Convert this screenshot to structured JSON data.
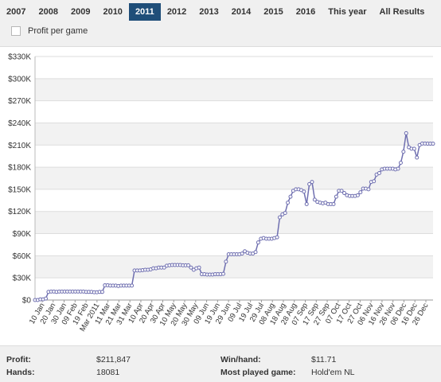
{
  "tabs": [
    {
      "label": "2007",
      "active": false
    },
    {
      "label": "2008",
      "active": false
    },
    {
      "label": "2009",
      "active": false
    },
    {
      "label": "2010",
      "active": false
    },
    {
      "label": "2011",
      "active": true
    },
    {
      "label": "2012",
      "active": false
    },
    {
      "label": "2013",
      "active": false
    },
    {
      "label": "2014",
      "active": false
    },
    {
      "label": "2015",
      "active": false
    },
    {
      "label": "2016",
      "active": false
    },
    {
      "label": "This year",
      "active": false
    },
    {
      "label": "All Results",
      "active": false
    }
  ],
  "profit_per_game": {
    "label": "Profit per game",
    "checked": false
  },
  "chart_data": {
    "type": "line",
    "title": "",
    "xlabel": "",
    "ylabel": "",
    "ylim": [
      0,
      330000
    ],
    "y_ticks": [
      "$0",
      "$30K",
      "$60K",
      "$90K",
      "$120K",
      "$150K",
      "$180K",
      "$210K",
      "$240K",
      "$270K",
      "$300K",
      "$330K"
    ],
    "x_ticks": [
      "10 Jan",
      "20 Jan",
      "30 Jan",
      "09 Feb",
      "19 Feb",
      "Mar 2011",
      "11 Mar",
      "21 Mar",
      "31 Mar",
      "10 Apr",
      "20 Apr",
      "30 Apr",
      "10 May",
      "20 May",
      "30 May",
      "09 Jun",
      "19 Jun",
      "29 Jun",
      "09 Jul",
      "19 Jul",
      "29 Jul",
      "08 Aug",
      "18 Aug",
      "28 Aug",
      "07 Sep",
      "17 Sep",
      "27 Sep",
      "07 Oct",
      "17 Oct",
      "27 Oct",
      "06 Nov",
      "16 Nov",
      "26 Nov",
      "06 Dec",
      "16 Dec",
      "26 Dec"
    ],
    "grid": true,
    "line_color": "#6f6fb0",
    "series": [
      {
        "x": [
          0,
          1,
          2,
          3,
          4,
          5,
          6,
          7,
          8,
          9,
          10,
          11,
          12,
          13,
          14,
          15,
          16,
          17,
          18,
          19,
          20,
          21,
          22,
          23,
          24,
          25,
          26,
          27,
          28,
          29,
          30,
          31,
          32,
          33,
          34,
          35,
          36,
          37,
          38,
          39,
          40,
          41,
          42,
          43,
          44,
          45,
          46,
          47,
          48,
          49,
          50,
          51,
          52,
          53,
          54,
          55,
          56,
          57,
          58,
          59,
          60,
          61,
          62,
          63,
          64,
          65,
          66,
          67,
          68,
          69,
          70,
          71,
          72,
          73,
          74,
          75,
          76,
          77,
          78,
          79,
          80,
          81,
          82,
          83,
          84,
          85,
          86,
          87,
          88,
          89,
          90,
          91,
          92,
          93,
          94,
          95,
          96,
          97,
          98,
          99,
          100,
          101,
          102,
          103,
          104,
          105,
          106,
          107,
          108,
          109,
          110,
          111,
          112,
          113,
          114,
          115,
          116,
          117,
          118,
          119,
          120,
          121,
          122,
          123,
          124,
          125,
          126,
          127,
          128,
          129,
          130,
          131,
          132,
          133,
          134,
          135,
          136,
          137,
          138,
          139,
          140,
          141,
          142,
          143,
          144,
          145,
          146,
          147,
          148
        ],
        "values": [
          0,
          0,
          1000,
          1000,
          2000,
          11000,
          11500,
          11500,
          11000,
          11500,
          11500,
          11500,
          11500,
          11500,
          11500,
          11500,
          11500,
          11500,
          11500,
          11000,
          11000,
          11000,
          10500,
          10500,
          11000,
          11000,
          20000,
          20000,
          19500,
          19500,
          19500,
          19000,
          19500,
          19500,
          19500,
          19500,
          19500,
          40000,
          40000,
          40000,
          40500,
          41000,
          41000,
          41500,
          43000,
          43000,
          44000,
          44000,
          44000,
          46500,
          47000,
          47500,
          47500,
          47500,
          47500,
          47000,
          47000,
          47000,
          44000,
          41000,
          43000,
          44000,
          35000,
          35000,
          34500,
          34500,
          34500,
          35000,
          35000,
          35000,
          35500,
          52000,
          62000,
          62000,
          62000,
          62000,
          62000,
          63000,
          66000,
          64000,
          63000,
          63000,
          65000,
          78000,
          83000,
          84000,
          83000,
          83000,
          83000,
          84000,
          85000,
          112000,
          116000,
          118000,
          132000,
          140000,
          148000,
          150000,
          150000,
          149000,
          147000,
          130000,
          157000,
          160000,
          136000,
          133000,
          132000,
          131000,
          132000,
          130000,
          130000,
          130000,
          140000,
          148000,
          148000,
          145000,
          142000,
          141000,
          141000,
          141000,
          142000,
          146000,
          151000,
          151000,
          150000,
          160000,
          161000,
          170000,
          172000,
          177000,
          178000,
          178000,
          178000,
          178000,
          177000,
          178000,
          186000,
          201000,
          226000,
          207000,
          205000,
          205000,
          193000,
          210000,
          212000,
          212000,
          211847,
          211847,
          211847
        ]
      }
    ]
  },
  "footer": {
    "profit_label": "Profit:",
    "profit_value": "$211,847",
    "hands_label": "Hands:",
    "hands_value": "18081",
    "winhand_label": "Win/hand:",
    "winhand_value": "$11.71",
    "mostplayed_label": "Most played game:",
    "mostplayed_value": "Hold'em NL"
  }
}
